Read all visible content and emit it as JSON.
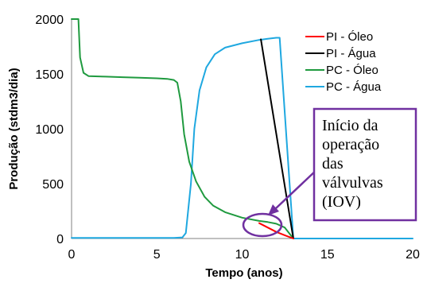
{
  "chart_data": {
    "type": "line",
    "xlabel": "Tempo (anos)",
    "ylabel": "Produção (stdm3/dia)",
    "xlim": [
      0,
      20
    ],
    "ylim": [
      0,
      2000
    ],
    "xticks": [
      "0",
      "5",
      "10",
      "15",
      "20"
    ],
    "yticks": [
      "0",
      "500",
      "1000",
      "1500",
      "2000"
    ],
    "grid": false,
    "legend_position": "top-right",
    "series": [
      {
        "name": "PI - Óleo",
        "color": "#ff0000",
        "points": [
          [
            11.0,
            140
          ],
          [
            11.5,
            100
          ],
          [
            12.0,
            60
          ],
          [
            12.5,
            30
          ],
          [
            13.0,
            0
          ]
        ]
      },
      {
        "name": "PI - Água",
        "color": "#000000",
        "points": [
          [
            11.1,
            1815
          ],
          [
            13.0,
            0
          ]
        ]
      },
      {
        "name": "PC - Óleo",
        "color": "#1f9a3f",
        "points": [
          [
            0.0,
            2000
          ],
          [
            0.4,
            2000
          ],
          [
            0.5,
            1650
          ],
          [
            0.7,
            1510
          ],
          [
            1.0,
            1480
          ],
          [
            2.0,
            1475
          ],
          [
            3.0,
            1470
          ],
          [
            4.0,
            1465
          ],
          [
            5.0,
            1460
          ],
          [
            5.6,
            1455
          ],
          [
            6.0,
            1445
          ],
          [
            6.2,
            1420
          ],
          [
            6.4,
            1250
          ],
          [
            6.6,
            950
          ],
          [
            6.9,
            700
          ],
          [
            7.3,
            520
          ],
          [
            7.8,
            380
          ],
          [
            8.3,
            300
          ],
          [
            9.0,
            240
          ],
          [
            10.0,
            190
          ],
          [
            11.0,
            160
          ],
          [
            11.5,
            150
          ],
          [
            12.0,
            135
          ],
          [
            12.5,
            100
          ],
          [
            13.0,
            0
          ]
        ]
      },
      {
        "name": "PC - Água",
        "color": "#1fa8e0",
        "points": [
          [
            0.0,
            5
          ],
          [
            6.0,
            5
          ],
          [
            6.5,
            10
          ],
          [
            6.7,
            50
          ],
          [
            7.0,
            500
          ],
          [
            7.2,
            1000
          ],
          [
            7.5,
            1350
          ],
          [
            7.9,
            1560
          ],
          [
            8.4,
            1680
          ],
          [
            9.0,
            1740
          ],
          [
            10.0,
            1780
          ],
          [
            11.0,
            1810
          ],
          [
            11.5,
            1820
          ],
          [
            12.0,
            1830
          ],
          [
            12.2,
            1830
          ],
          [
            13.0,
            0
          ],
          [
            20.0,
            0
          ]
        ]
      }
    ]
  },
  "annotation": {
    "lines": [
      "Início da",
      "operação",
      "das",
      "válvulvas",
      "(IOV)"
    ]
  }
}
